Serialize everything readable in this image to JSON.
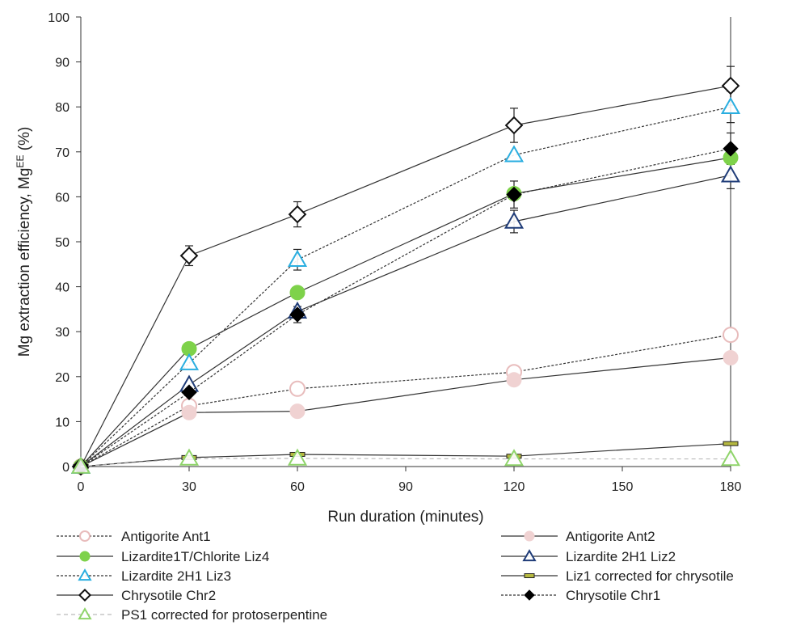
{
  "chart_data": {
    "type": "line",
    "title": "",
    "xlabel": "Run duration (minutes)",
    "ylabel": "Mg extraction efficiency, Mg",
    "ylabel_superscript": "EE",
    "ylabel_suffix": " (%)",
    "xlim": [
      0,
      180
    ],
    "ylim": [
      0,
      100
    ],
    "xticks": [
      0,
      30,
      60,
      90,
      120,
      150,
      180
    ],
    "yticks": [
      0,
      10,
      20,
      30,
      40,
      50,
      60,
      70,
      80,
      90,
      100
    ],
    "grid": false,
    "legend_position": "bottom",
    "series": [
      {
        "name": "Antigorite Ant1",
        "x": [
          0,
          30,
          60,
          120,
          180
        ],
        "values": [
          0,
          13.5,
          17.3,
          21,
          29.3
        ],
        "line": "dotted",
        "marker": "circle-open",
        "color": "#e8bcbc"
      },
      {
        "name": "Antigorite Ant2",
        "x": [
          0,
          30,
          60,
          120,
          180
        ],
        "values": [
          0,
          12,
          12.3,
          19.3,
          24.2
        ],
        "line": "solid",
        "marker": "circle-filled",
        "color": "#f0d2d2"
      },
      {
        "name": "Lizardite1T/Chlorite Liz4",
        "x": [
          0,
          30,
          60,
          120,
          180
        ],
        "values": [
          0,
          26.2,
          38.7,
          60.7,
          68.7
        ],
        "line": "solid",
        "marker": "circle-filled",
        "color": "#7ed24a"
      },
      {
        "name": "Lizardite 2H1 Liz2",
        "x": [
          0,
          30,
          60,
          120,
          180
        ],
        "values": [
          0,
          18.2,
          34.5,
          54.5,
          64.8
        ],
        "line": "solid",
        "marker": "triangle-open",
        "color": "#1f3c78"
      },
      {
        "name": "Lizardite 2H1 Liz3",
        "x": [
          0,
          30,
          60,
          120,
          180
        ],
        "values": [
          0,
          23,
          46,
          69.3,
          80
        ],
        "line": "dotted",
        "marker": "triangle-open",
        "color": "#2aaee0"
      },
      {
        "name": "Liz1 corrected for chrysotile",
        "x": [
          0,
          30,
          60,
          120,
          180
        ],
        "values": [
          0,
          2,
          2.7,
          2.3,
          5.1
        ],
        "line": "solid",
        "marker": "dash",
        "color": "#b5b840"
      },
      {
        "name": "Chrysotile Chr2",
        "x": [
          0,
          30,
          60,
          120,
          180
        ],
        "values": [
          0,
          46.9,
          56.1,
          75.9,
          84.7
        ],
        "line": "solid",
        "marker": "diamond-open",
        "color": "#111111"
      },
      {
        "name": "Chrysotile Chr1",
        "x": [
          0,
          30,
          60,
          120,
          180
        ],
        "values": [
          0,
          16.5,
          33.8,
          60.5,
          70.7
        ],
        "line": "dotted",
        "marker": "diamond-filled",
        "color": "#000000"
      },
      {
        "name": "PS1 corrected for protoserpentine",
        "x": [
          0,
          30,
          60,
          120,
          180
        ],
        "values": [
          0,
          1.8,
          1.8,
          1.7,
          1.7
        ],
        "line": "dashed",
        "marker": "triangle-open",
        "color": "#8fd46a"
      }
    ],
    "error_bars": [
      {
        "series": "Chrysotile Chr2",
        "x": 30,
        "value": 46.9,
        "err": 2.2
      },
      {
        "series": "Chrysotile Chr2",
        "x": 60,
        "value": 56.1,
        "err": 2.8
      },
      {
        "series": "Chrysotile Chr2",
        "x": 120,
        "value": 75.9,
        "err": 3.8
      },
      {
        "series": "Chrysotile Chr2",
        "x": 180,
        "value": 84.7,
        "err": 4.3
      },
      {
        "series": "Lizardite 2H1 Liz3",
        "x": 60,
        "value": 46,
        "err": 2.3
      },
      {
        "series": "Lizardite 2H1 Liz3",
        "x": 180,
        "value": 80,
        "err": 3.5
      },
      {
        "series": "Chrysotile Chr1",
        "x": 60,
        "value": 33.8,
        "err": 1.8
      },
      {
        "series": "Chrysotile Chr1",
        "x": 120,
        "value": 60.5,
        "err": 3
      },
      {
        "series": "Chrysotile Chr1",
        "x": 180,
        "value": 70.7,
        "err": 3.5
      },
      {
        "series": "Lizardite 2H1 Liz2",
        "x": 120,
        "value": 54.5,
        "err": 2.5
      },
      {
        "series": "Lizardite 2H1 Liz2",
        "x": 180,
        "value": 64.8,
        "err": 3
      }
    ]
  }
}
